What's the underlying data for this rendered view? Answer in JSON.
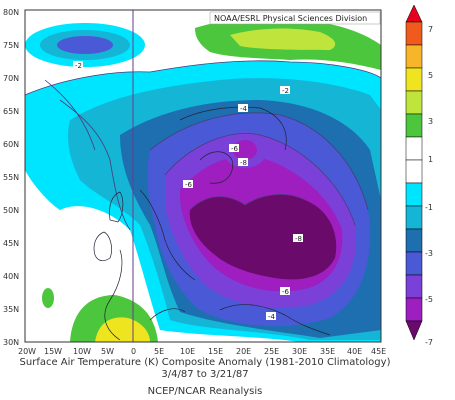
{
  "credit": "NOAA/ESRL Physical Sciences Division",
  "caption": {
    "line1": "Surface Air Temperature (K) Composite Anomaly (1981-2010 Climatology)",
    "line2": "3/4/87 to 3/21/87",
    "line3": "NCEP/NCAR Reanalysis"
  },
  "lat_labels": [
    "80N",
    "75N",
    "70N",
    "65N",
    "60N",
    "55N",
    "50N",
    "45N",
    "40N",
    "35N",
    "30N"
  ],
  "lon_labels": [
    "20W",
    "15W",
    "10W",
    "5W",
    "0",
    "5E",
    "10E",
    "15E",
    "20E",
    "25E",
    "30E",
    "35E",
    "40E",
    "45E"
  ],
  "contour_labels": [
    "-2",
    "-2",
    "-4",
    "-6",
    "-8",
    "-6",
    "-8",
    "-6",
    "-4"
  ],
  "colorbar": {
    "labels": [
      "7",
      "5",
      "3",
      "1",
      "-1",
      "-3",
      "-5",
      "-7"
    ],
    "colors": [
      "#e8001f",
      "#f05a1c",
      "#f7b62a",
      "#eee520",
      "#bfe43c",
      "#4cc63c",
      "#ffffff",
      "#00e5ff",
      "#14b5d5",
      "#1d6fb0",
      "#4a5ad6",
      "#7b40d8",
      "#9e1ec0",
      "#6a0a6a"
    ]
  },
  "map_colors": {
    "frame": "#ffffff",
    "cyan": "#00e5ff",
    "teal": "#14b5d5",
    "blue": "#1d6fb0",
    "indigo": "#4a5ad6",
    "violet": "#7b40d8",
    "magenta": "#9e1ec0",
    "darkpurple": "#6a0a6a",
    "green": "#4cc63c",
    "lightgreen": "#bfe43c",
    "yellow": "#eee520"
  }
}
